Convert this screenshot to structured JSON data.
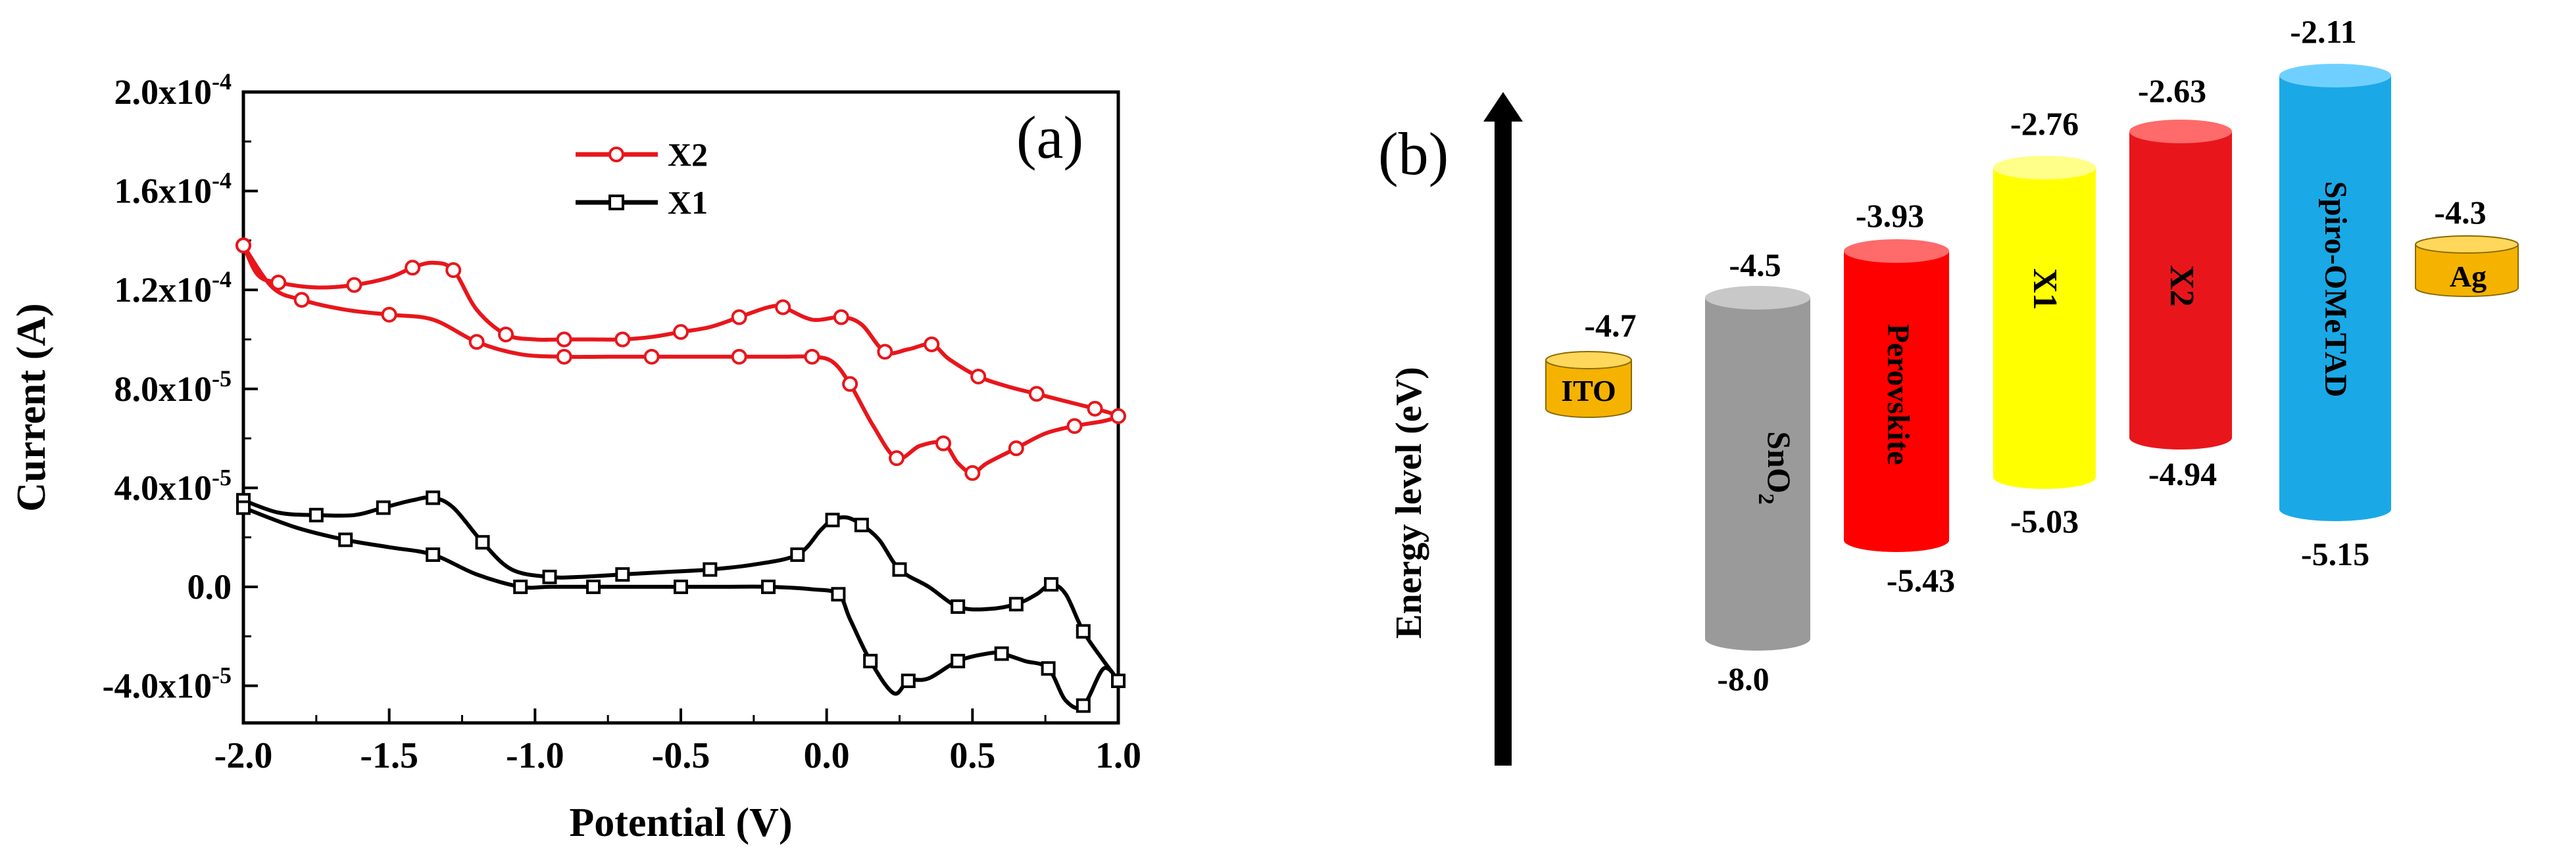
{
  "chart_data": [
    {
      "type": "line",
      "panel_label": "(a)",
      "xlabel": "Potential (V)",
      "ylabel": "Current (A)",
      "xlim": [
        -2.0,
        1.0
      ],
      "ylim": [
        -5.5e-05,
        0.0002
      ],
      "x_ticks": [
        -2.0,
        -1.5,
        -1.0,
        -0.5,
        0.0,
        0.5,
        1.0
      ],
      "x_tick_labels": [
        "-2.0",
        "-1.5",
        "-1.0",
        "-0.5",
        "0.0",
        "0.5",
        "1.0"
      ],
      "y_ticks": [
        -4e-05,
        0.0,
        4e-05,
        8e-05,
        0.00012,
        0.00016,
        0.0002
      ],
      "y_tick_labels": [
        {
          "mant": "-4.0x10",
          "exp": "-5"
        },
        {
          "mant": "0.0",
          "exp": ""
        },
        {
          "mant": "4.0x10",
          "exp": "-5"
        },
        {
          "mant": "8.0x10",
          "exp": "-5"
        },
        {
          "mant": "1.2x10",
          "exp": "-4"
        },
        {
          "mant": "1.6x10",
          "exp": "-4"
        },
        {
          "mant": "2.0x10",
          "exp": "-4"
        }
      ],
      "legend": [
        {
          "name": "X2",
          "color": "#e8161b",
          "marker": "circle"
        },
        {
          "name": "X1",
          "color": "#000000",
          "marker": "square"
        }
      ],
      "series": [
        {
          "name": "X2",
          "color": "#e8161b",
          "marker": "circle",
          "x": [
            -2.0,
            -1.95,
            -1.88,
            -1.75,
            -1.62,
            -1.5,
            -1.42,
            -1.35,
            -1.28,
            -1.2,
            -1.1,
            -1.0,
            -0.9,
            -0.8,
            -0.7,
            -0.6,
            -0.5,
            -0.4,
            -0.3,
            -0.2,
            -0.15,
            -0.05,
            0.05,
            0.12,
            0.2,
            0.28,
            0.36,
            0.42,
            0.52,
            0.62,
            0.72,
            0.82,
            0.92,
            0.98,
            1.0,
            0.95,
            0.85,
            0.75,
            0.65,
            0.55,
            0.5,
            0.45,
            0.4,
            0.32,
            0.24,
            0.16,
            0.08,
            0.02,
            -0.05,
            -0.15,
            -0.3,
            -0.45,
            -0.6,
            -0.75,
            -0.9,
            -1.05,
            -1.2,
            -1.35,
            -1.5,
            -1.65,
            -1.8,
            -1.9,
            -2.0
          ],
          "y": [
            0.000138,
            0.000126,
            0.000123,
            0.000121,
            0.000122,
            0.000125,
            0.000129,
            0.000131,
            0.000128,
            0.000112,
            0.000102,
            0.0001,
            0.0001,
            0.0001,
            0.0001,
            0.000101,
            0.000103,
            0.000105,
            0.000109,
            0.000113,
            0.000113,
            0.000108,
            0.000109,
            0.000106,
            9.5e-05,
            9.6e-05,
            9.8e-05,
            9.2e-05,
            8.5e-05,
            8.1e-05,
            7.8e-05,
            7.5e-05,
            7.2e-05,
            7e-05,
            6.9e-05,
            6.7e-05,
            6.5e-05,
            6.2e-05,
            5.6e-05,
            5e-05,
            4.6e-05,
            5e-05,
            5.8e-05,
            5.7e-05,
            5.2e-05,
            6.5e-05,
            8.2e-05,
            9.1e-05,
            9.3e-05,
            9.3e-05,
            9.3e-05,
            9.3e-05,
            9.3e-05,
            9.3e-05,
            9.3e-05,
            9.4e-05,
            9.9e-05,
            0.000108,
            0.00011,
            0.000112,
            0.000116,
            0.000121,
            0.000138
          ]
        },
        {
          "name": "X1",
          "color": "#000000",
          "marker": "square",
          "x": [
            -2.0,
            -1.88,
            -1.75,
            -1.62,
            -1.52,
            -1.42,
            -1.35,
            -1.28,
            -1.18,
            -1.08,
            -0.95,
            -0.85,
            -0.7,
            -0.55,
            -0.4,
            -0.25,
            -0.1,
            -0.02,
            0.02,
            0.07,
            0.12,
            0.18,
            0.25,
            0.35,
            0.45,
            0.55,
            0.65,
            0.72,
            0.77,
            0.82,
            0.88,
            0.95,
            1.0,
            0.95,
            0.88,
            0.82,
            0.76,
            0.68,
            0.6,
            0.55,
            0.45,
            0.35,
            0.28,
            0.23,
            0.15,
            0.08,
            0.04,
            -0.05,
            -0.2,
            -0.35,
            -0.5,
            -0.65,
            -0.8,
            -0.95,
            -1.05,
            -1.2,
            -1.35,
            -1.5,
            -1.65,
            -1.82,
            -2.0
          ],
          "y": [
            3.5e-05,
            3e-05,
            2.9e-05,
            2.9e-05,
            3.2e-05,
            3.5e-05,
            3.6e-05,
            3.2e-05,
            1.8e-05,
            7e-06,
            4e-06,
            4e-06,
            5e-06,
            6e-06,
            7e-06,
            9e-06,
            1.3e-05,
            2.3e-05,
            2.7e-05,
            2.8e-05,
            2.5e-05,
            1.9e-05,
            7e-06,
            0.0,
            -8e-06,
            -9e-06,
            -7e-06,
            -3e-06,
            1e-06,
            -3e-06,
            -1.8e-05,
            -3e-05,
            -3.8e-05,
            -3.3e-05,
            -4.8e-05,
            -4.6e-05,
            -3.3e-05,
            -3e-05,
            -2.7e-05,
            -2.7e-05,
            -3e-05,
            -3.7e-05,
            -3.8e-05,
            -4.3e-05,
            -3e-05,
            -1.3e-05,
            -3e-06,
            -1e-06,
            0.0,
            0.0,
            0.0,
            0.0,
            0.0,
            0.0,
            0.0,
            5e-06,
            1.3e-05,
            1.6e-05,
            1.9e-05,
            2.4e-05,
            3.2e-05
          ]
        }
      ]
    },
    {
      "type": "diagram",
      "panel_label": "(b)",
      "ylabel": "Energy level (eV)",
      "energy_range": [
        -8.0,
        -2.11
      ],
      "layers": [
        {
          "name": "ITO",
          "top": -4.7,
          "bottom": null,
          "top_label": "-4.7",
          "bottom_label": "",
          "color": "#f5b300",
          "vertical": false
        },
        {
          "name": "SnO",
          "sub": "2",
          "top": -4.5,
          "bottom": -8.0,
          "top_label": "-4.5",
          "bottom_label": "-8.0",
          "color": "#9a9a9a",
          "vertical": true
        },
        {
          "name": "Perovskite",
          "top": -3.93,
          "bottom": -5.43,
          "top_label": "-3.93",
          "bottom_label": "-5.43",
          "color": "#ff0000",
          "vertical": true
        },
        {
          "name": "X1",
          "top": -2.76,
          "bottom": -5.03,
          "top_label": "-2.76",
          "bottom_label": "-5.03",
          "color": "#ffff00",
          "vertical": true
        },
        {
          "name": "X2",
          "top": -2.63,
          "bottom": -4.94,
          "top_label": "-2.63",
          "bottom_label": "-4.94",
          "color": "#e8161b",
          "vertical": true
        },
        {
          "name": "Spiro-OMeTAD",
          "top": -2.11,
          "bottom": -5.15,
          "top_label": "-2.11",
          "bottom_label": "-5.15",
          "color": "#1aa9e6",
          "vertical": true
        },
        {
          "name": "Ag",
          "top": -4.3,
          "bottom": null,
          "top_label": "-4.3",
          "bottom_label": "",
          "color": "#f5b300",
          "vertical": false
        }
      ]
    }
  ]
}
